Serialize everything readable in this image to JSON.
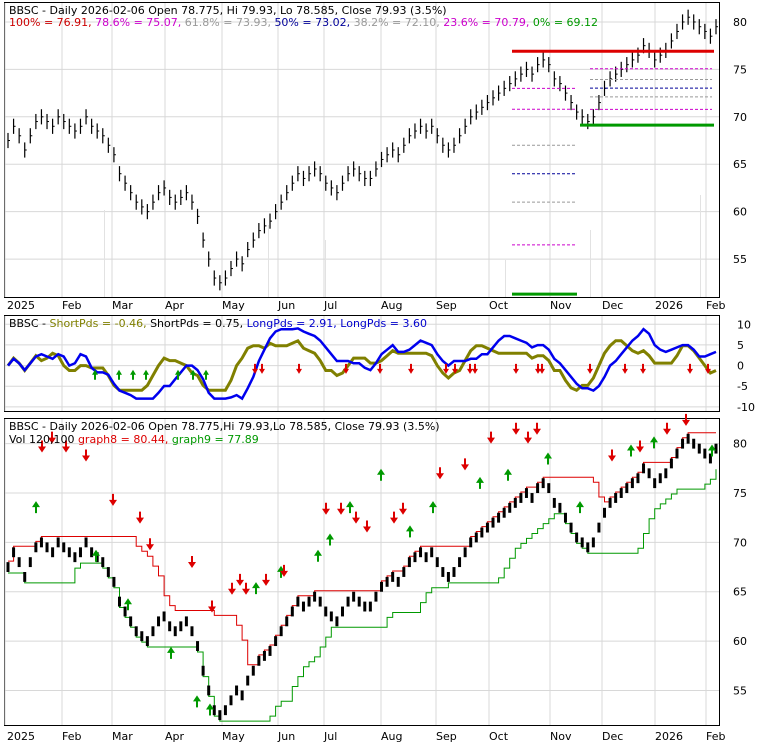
{
  "chart_data": [
    {
      "type": "candlestick",
      "panel": "price-fibonacci",
      "header": {
        "title": "BBSC - Daily 2026-02-06 Open 78.775, Hi 79.93, Lo 78.585, Close 79.93 (3.5%)",
        "fib_levels": [
          {
            "label": "100% = 76.91",
            "color": "#cc0000",
            "value": 76.91
          },
          {
            "label": "78.6% = 75.07",
            "color": "#cc00cc",
            "value": 75.07
          },
          {
            "label": "61.8% = 73.93",
            "color": "#999999",
            "value": 73.93
          },
          {
            "label": "50% = 73.02",
            "color": "#000099",
            "value": 73.02
          },
          {
            "label": "38.2% = 72.10",
            "color": "#999999",
            "value": 72.1
          },
          {
            "label": "23.6% = 70.79",
            "color": "#cc00cc",
            "value": 70.79
          },
          {
            "label": "0% = 69.12",
            "color": "#009900",
            "value": 69.12
          }
        ]
      },
      "yticks": [
        "80",
        "75",
        "70",
        "65",
        "60",
        "55"
      ],
      "ylim": [
        51,
        82
      ]
    },
    {
      "type": "line",
      "panel": "oscillator",
      "header": {
        "items": [
          {
            "label": "BBSC - ",
            "color": "#000000"
          },
          {
            "label": "ShortPds = -0.46, ",
            "color": "#808000"
          },
          {
            "label": "ShortPds = 0.75, ",
            "color": "#000000"
          },
          {
            "label": "LongPds = 2.91, ",
            "color": "#0000cc"
          },
          {
            "label": "LongPds = 3.60",
            "color": "#0000cc"
          }
        ]
      },
      "yticks": [
        "10",
        "5",
        "0",
        "-5",
        "-10"
      ],
      "ylim": [
        -11,
        12
      ]
    },
    {
      "type": "line",
      "panel": "price-stops",
      "header": {
        "line1": "BBSC - Daily 2026-02-06 Open 78.775,Hi 79.93,Lo 78.585, Close 79.93 (3.5%)",
        "vol_label": "Vol 120,100 ",
        "graph8_label": "graph8 = 80.44, ",
        "graph9_label": "graph9 = 77.89",
        "graph8_value": 80.44,
        "graph9_value": 77.89
      },
      "yticks": [
        "80",
        "75",
        "70",
        "65",
        "60",
        "55"
      ],
      "ylim": [
        51.5,
        82.5
      ]
    }
  ],
  "xaxis": [
    "2025",
    "Feb",
    "Mar",
    "Apr",
    "May",
    "Jun",
    "Jul",
    "Aug",
    "Sep",
    "Oct",
    "Nov",
    "Dec",
    "2026",
    "Feb"
  ],
  "colors": {
    "up_arrow": "#009900",
    "down_arrow": "#dd0000",
    "price": "#000000",
    "long": "#0000ee",
    "short": "#808000",
    "stop_red": "#dd0000",
    "stop_green": "#009900"
  },
  "series_close": [
    67.5,
    69,
    68,
    66.5,
    68,
    69.5,
    70,
    69.5,
    69,
    70,
    69.5,
    69,
    68.5,
    69,
    70,
    69,
    68.5,
    68,
    67,
    66,
    64,
    63,
    62,
    61,
    60.5,
    60,
    61,
    62,
    62.5,
    61.5,
    61,
    61.5,
    62,
    61,
    59.5,
    57,
    55,
    53,
    52.5,
    53,
    54,
    55,
    54.5,
    56,
    57,
    58,
    58.5,
    59,
    60,
    61,
    62,
    63,
    64,
    63.5,
    64,
    64.5,
    64,
    63,
    62.5,
    62,
    63,
    64,
    64.5,
    64,
    63.5,
    63.5,
    64.5,
    65.5,
    66,
    66.5,
    66,
    67,
    68,
    68.5,
    69,
    68.5,
    69,
    68,
    67,
    66.5,
    67,
    68,
    69,
    70,
    70.5,
    71,
    71.5,
    72,
    72.5,
    73,
    73.5,
    74,
    74.5,
    75,
    74.5,
    75.5,
    76,
    75.5,
    74,
    73.5,
    72.5,
    71.5,
    70.5,
    70,
    69.5,
    70,
    71.5,
    73,
    74,
    74.5,
    75,
    75.5,
    76,
    76.5,
    77.5,
    77,
    76,
    76.5,
    77,
    78,
    79,
    80,
    80.5,
    80,
    79.5,
    79,
    78.5,
    79.5
  ],
  "up_arrows": [
    [
      36,
      74
    ],
    [
      96,
      68
    ],
    [
      128,
      62
    ],
    [
      171,
      56
    ],
    [
      197,
      50
    ],
    [
      210,
      49
    ],
    [
      256,
      64
    ],
    [
      281,
      66
    ],
    [
      318,
      68
    ],
    [
      330,
      70
    ],
    [
      350,
      74
    ],
    [
      381,
      78
    ],
    [
      410,
      71
    ],
    [
      433,
      74
    ],
    [
      480,
      77
    ],
    [
      508,
      78
    ],
    [
      548,
      80
    ],
    [
      580,
      74
    ],
    [
      631,
      81
    ],
    [
      654,
      82
    ],
    [
      712,
      81
    ]
  ],
  "down_arrows": [
    [
      42,
      79
    ],
    [
      52,
      80
    ],
    [
      66,
      79
    ],
    [
      86,
      78
    ],
    [
      113,
      73
    ],
    [
      140,
      71
    ],
    [
      150,
      68
    ],
    [
      192,
      66
    ],
    [
      212,
      61
    ],
    [
      232,
      63
    ],
    [
      240,
      64
    ],
    [
      246,
      63
    ],
    [
      266,
      64
    ],
    [
      284,
      65
    ],
    [
      326,
      72
    ],
    [
      341,
      72
    ],
    [
      356,
      71
    ],
    [
      367,
      70
    ],
    [
      394,
      71
    ],
    [
      403,
      72
    ],
    [
      440,
      76
    ],
    [
      465,
      77
    ],
    [
      491,
      80
    ],
    [
      516,
      81
    ],
    [
      528,
      80
    ],
    [
      537,
      81
    ],
    [
      612,
      78
    ],
    [
      640,
      79
    ],
    [
      667,
      81
    ],
    [
      686,
      82
    ]
  ]
}
